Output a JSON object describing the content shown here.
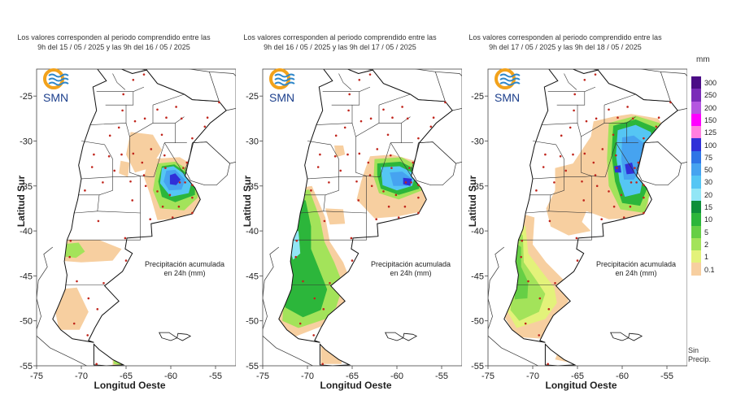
{
  "panels": [
    {
      "title_line1": "Los valores corresponden al periodo comprendido entre las",
      "title_line2": "9h del 15 / 05 / 2025  y las 9h del 16 / 05 / 2025",
      "caption_line1": "Precipitación acumulada",
      "caption_line2": "en 24h (mm)"
    },
    {
      "title_line1": "Los valores corresponden al periodo comprendido entre las",
      "title_line2": "9h del 16 / 05 / 2025  y las 9h del 17 / 05 / 2025",
      "caption_line1": "Precipitación acumulada",
      "caption_line2": "en 24h (mm)"
    },
    {
      "title_line1": "Los valores corresponden al periodo comprendido entre las",
      "title_line2": "9h del 17 / 05 / 2025  y las 9h del 18 / 05 / 2025",
      "caption_line1": "Precipitación acumulada",
      "caption_line2": "en 24h (mm)"
    }
  ],
  "axes": {
    "xlabel": "Longitud Oeste",
    "ylabel": "Latitud Sur",
    "xticks": [
      "-75",
      "-70",
      "-65",
      "-60",
      "-55"
    ],
    "yticks": [
      "-25",
      "-30",
      "-35",
      "-40",
      "-45",
      "-50",
      "-55"
    ]
  },
  "logo": {
    "text": "SMN",
    "name": "smn-logo"
  },
  "legend": {
    "unit": "mm",
    "levels": [
      "300",
      "250",
      "200",
      "150",
      "125",
      "100",
      "75",
      "50",
      "30",
      "20",
      "15",
      "10",
      "5",
      "2",
      "1",
      "0.1"
    ],
    "colors": [
      "#4b0c86",
      "#7a2bb8",
      "#b456e0",
      "#ff00ff",
      "#ff7fe0",
      "#3030d8",
      "#2f75e6",
      "#46a3f0",
      "#55c6f4",
      "#92e6f6",
      "#0e8f3a",
      "#2cb63b",
      "#66cf45",
      "#a3e35a",
      "#e3f27a",
      "#f7cfa0"
    ],
    "no_precip_line1": "Sin",
    "no_precip_line2": "Precip."
  }
}
